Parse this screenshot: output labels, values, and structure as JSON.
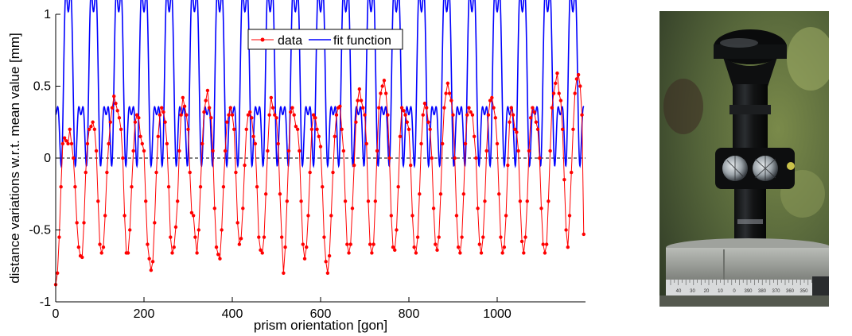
{
  "chart_data": {
    "type": "line",
    "xlabel": "prism orientation [gon]",
    "ylabel": "distance variations w.r.t. mean value [mm]",
    "xlim": [
      0,
      1200
    ],
    "ylim": [
      -1,
      1
    ],
    "xticks": [
      "0",
      "200",
      "400",
      "600",
      "800",
      "1000"
    ],
    "yticks": [
      "1",
      "0.5",
      "0",
      "-0.5",
      "-1"
    ],
    "zero_line": "dashed",
    "grid": false,
    "legend_position": "top-center",
    "fit_period_gon": 57.14,
    "series": [
      {
        "name": "data",
        "color": "#ff0000",
        "style": "line-with-dots",
        "points": [
          [
            0,
            -0.88
          ],
          [
            4,
            -0.8
          ],
          [
            8,
            -0.55
          ],
          [
            12,
            -0.2
          ],
          [
            16,
            0.1
          ],
          [
            20,
            0.14
          ],
          [
            24,
            0.12
          ],
          [
            28,
            0.1
          ],
          [
            32,
            0.2
          ],
          [
            36,
            0.1
          ],
          [
            40,
            0.0
          ],
          [
            44,
            -0.2
          ],
          [
            48,
            -0.45
          ],
          [
            52,
            -0.62
          ],
          [
            56,
            -0.68
          ],
          [
            60,
            -0.69
          ],
          [
            64,
            -0.45
          ],
          [
            68,
            -0.1
          ],
          [
            72,
            0.1
          ],
          [
            76,
            0.2
          ],
          [
            80,
            0.22
          ],
          [
            84,
            0.25
          ],
          [
            88,
            0.2
          ],
          [
            92,
            0.05
          ],
          [
            96,
            -0.3
          ],
          [
            100,
            -0.6
          ],
          [
            104,
            -0.66
          ],
          [
            108,
            -0.62
          ],
          [
            112,
            -0.4
          ],
          [
            116,
            -0.1
          ],
          [
            120,
            0.1
          ],
          [
            124,
            0.25
          ],
          [
            128,
            0.35
          ],
          [
            132,
            0.43
          ],
          [
            136,
            0.38
          ],
          [
            140,
            0.33
          ],
          [
            144,
            0.28
          ],
          [
            148,
            0.2
          ],
          [
            152,
            0.0
          ],
          [
            156,
            -0.4
          ],
          [
            160,
            -0.66
          ],
          [
            164,
            -0.66
          ],
          [
            168,
            -0.5
          ],
          [
            172,
            -0.2
          ],
          [
            176,
            0.05
          ],
          [
            180,
            0.25
          ],
          [
            184,
            0.3
          ],
          [
            188,
            0.28
          ],
          [
            192,
            0.15
          ],
          [
            196,
            0.1
          ],
          [
            200,
            0.05
          ],
          [
            204,
            -0.3
          ],
          [
            208,
            -0.6
          ],
          [
            212,
            -0.7
          ],
          [
            216,
            -0.78
          ],
          [
            220,
            -0.72
          ],
          [
            224,
            -0.45
          ],
          [
            228,
            -0.1
          ],
          [
            232,
            0.15
          ],
          [
            236,
            0.3
          ],
          [
            240,
            0.35
          ],
          [
            244,
            0.32
          ],
          [
            248,
            0.25
          ],
          [
            252,
            0.1
          ],
          [
            256,
            -0.2
          ],
          [
            260,
            -0.55
          ],
          [
            264,
            -0.66
          ],
          [
            268,
            -0.62
          ],
          [
            272,
            -0.48
          ],
          [
            276,
            -0.3
          ],
          [
            280,
            0.05
          ],
          [
            284,
            0.3
          ],
          [
            288,
            0.42
          ],
          [
            292,
            0.36
          ],
          [
            296,
            0.3
          ],
          [
            300,
            0.2
          ],
          [
            304,
            -0.1
          ],
          [
            308,
            -0.38
          ],
          [
            312,
            -0.4
          ],
          [
            316,
            -0.55
          ],
          [
            320,
            -0.66
          ],
          [
            324,
            -0.5
          ],
          [
            328,
            -0.2
          ],
          [
            332,
            0.1
          ],
          [
            336,
            0.32
          ],
          [
            340,
            0.4
          ],
          [
            344,
            0.47
          ],
          [
            348,
            0.35
          ],
          [
            352,
            0.28
          ],
          [
            356,
            0.05
          ],
          [
            360,
            -0.35
          ],
          [
            364,
            -0.62
          ],
          [
            368,
            -0.67
          ],
          [
            372,
            -0.7
          ],
          [
            376,
            -0.5
          ],
          [
            380,
            -0.2
          ],
          [
            384,
            0.05
          ],
          [
            388,
            0.25
          ],
          [
            392,
            0.3
          ],
          [
            396,
            0.35
          ],
          [
            400,
            0.3
          ],
          [
            404,
            0.2
          ],
          [
            408,
            -0.1
          ],
          [
            412,
            -0.45
          ],
          [
            416,
            -0.6
          ],
          [
            420,
            -0.56
          ],
          [
            424,
            -0.35
          ],
          [
            428,
            -0.05
          ],
          [
            432,
            0.2
          ],
          [
            436,
            0.3
          ],
          [
            440,
            0.32
          ],
          [
            444,
            0.28
          ],
          [
            448,
            0.15
          ],
          [
            452,
            0.1
          ],
          [
            456,
            -0.2
          ],
          [
            460,
            -0.55
          ],
          [
            464,
            -0.64
          ],
          [
            468,
            -0.66
          ],
          [
            472,
            -0.55
          ],
          [
            476,
            -0.25
          ],
          [
            480,
            0.05
          ],
          [
            484,
            0.3
          ],
          [
            488,
            0.42
          ],
          [
            492,
            0.35
          ],
          [
            496,
            0.3
          ],
          [
            500,
            0.28
          ],
          [
            504,
            0.1
          ],
          [
            508,
            -0.25
          ],
          [
            512,
            -0.55
          ],
          [
            516,
            -0.8
          ],
          [
            520,
            -0.62
          ],
          [
            524,
            -0.3
          ],
          [
            528,
            0.05
          ],
          [
            532,
            0.32
          ],
          [
            536,
            0.35
          ],
          [
            540,
            0.3
          ],
          [
            544,
            0.22
          ],
          [
            548,
            0.2
          ],
          [
            552,
            0.05
          ],
          [
            556,
            -0.3
          ],
          [
            560,
            -0.6
          ],
          [
            564,
            -0.7
          ],
          [
            568,
            -0.62
          ],
          [
            572,
            -0.4
          ],
          [
            576,
            -0.1
          ],
          [
            580,
            0.2
          ],
          [
            584,
            0.3
          ],
          [
            588,
            0.28
          ],
          [
            592,
            0.2
          ],
          [
            596,
            0.15
          ],
          [
            600,
            0.08
          ],
          [
            604,
            -0.2
          ],
          [
            608,
            -0.55
          ],
          [
            612,
            -0.72
          ],
          [
            616,
            -0.8
          ],
          [
            620,
            -0.68
          ],
          [
            624,
            -0.4
          ],
          [
            628,
            -0.1
          ],
          [
            632,
            0.15
          ],
          [
            636,
            0.3
          ],
          [
            640,
            0.35
          ],
          [
            644,
            0.36
          ],
          [
            648,
            0.2
          ],
          [
            652,
            0.05
          ],
          [
            656,
            -0.3
          ],
          [
            660,
            -0.6
          ],
          [
            664,
            -0.66
          ],
          [
            668,
            -0.6
          ],
          [
            672,
            -0.35
          ],
          [
            676,
            -0.05
          ],
          [
            680,
            0.25
          ],
          [
            684,
            0.4
          ],
          [
            688,
            0.48
          ],
          [
            692,
            0.4
          ],
          [
            696,
            0.35
          ],
          [
            700,
            0.3
          ],
          [
            704,
            0.1
          ],
          [
            708,
            -0.3
          ],
          [
            712,
            -0.6
          ],
          [
            716,
            -0.66
          ],
          [
            720,
            -0.6
          ],
          [
            724,
            -0.3
          ],
          [
            728,
            0.05
          ],
          [
            732,
            0.35
          ],
          [
            736,
            0.45
          ],
          [
            740,
            0.5
          ],
          [
            744,
            0.54
          ],
          [
            748,
            0.45
          ],
          [
            752,
            0.3
          ],
          [
            756,
            0.0
          ],
          [
            760,
            -0.4
          ],
          [
            764,
            -0.62
          ],
          [
            768,
            -0.64
          ],
          [
            772,
            -0.5
          ],
          [
            776,
            -0.2
          ],
          [
            780,
            0.15
          ],
          [
            784,
            0.35
          ],
          [
            788,
            0.33
          ],
          [
            792,
            0.3
          ],
          [
            796,
            0.25
          ],
          [
            800,
            0.2
          ],
          [
            804,
            -0.05
          ],
          [
            808,
            -0.4
          ],
          [
            812,
            -0.62
          ],
          [
            816,
            -0.66
          ],
          [
            820,
            -0.55
          ],
          [
            824,
            -0.25
          ],
          [
            828,
            0.1
          ],
          [
            832,
            0.3
          ],
          [
            836,
            0.38
          ],
          [
            840,
            0.35
          ],
          [
            844,
            0.25
          ],
          [
            848,
            0.2
          ],
          [
            852,
            0.0
          ],
          [
            856,
            -0.35
          ],
          [
            860,
            -0.6
          ],
          [
            864,
            -0.64
          ],
          [
            868,
            -0.55
          ],
          [
            872,
            -0.25
          ],
          [
            876,
            0.1
          ],
          [
            880,
            0.35
          ],
          [
            884,
            0.45
          ],
          [
            888,
            0.52
          ],
          [
            892,
            0.45
          ],
          [
            896,
            0.4
          ],
          [
            900,
            0.3
          ],
          [
            904,
            0.0
          ],
          [
            908,
            -0.4
          ],
          [
            912,
            -0.62
          ],
          [
            916,
            -0.66
          ],
          [
            920,
            -0.55
          ],
          [
            924,
            -0.25
          ],
          [
            928,
            0.1
          ],
          [
            932,
            0.3
          ],
          [
            936,
            0.35
          ],
          [
            940,
            0.32
          ],
          [
            944,
            0.3
          ],
          [
            948,
            0.15
          ],
          [
            952,
            0.0
          ],
          [
            956,
            -0.35
          ],
          [
            960,
            -0.6
          ],
          [
            964,
            -0.66
          ],
          [
            968,
            -0.55
          ],
          [
            972,
            -0.3
          ],
          [
            976,
            0.05
          ],
          [
            980,
            0.3
          ],
          [
            984,
            0.4
          ],
          [
            988,
            0.42
          ],
          [
            992,
            0.35
          ],
          [
            996,
            0.28
          ],
          [
            1000,
            0.1
          ],
          [
            1004,
            -0.25
          ],
          [
            1008,
            -0.55
          ],
          [
            1012,
            -0.66
          ],
          [
            1016,
            -0.62
          ],
          [
            1020,
            -0.4
          ],
          [
            1024,
            -0.05
          ],
          [
            1028,
            0.25
          ],
          [
            1032,
            0.35
          ],
          [
            1036,
            0.3
          ],
          [
            1040,
            0.2
          ],
          [
            1044,
            0.18
          ],
          [
            1048,
            0.05
          ],
          [
            1052,
            -0.3
          ],
          [
            1056,
            -0.58
          ],
          [
            1060,
            -0.66
          ],
          [
            1064,
            -0.55
          ],
          [
            1068,
            -0.3
          ],
          [
            1072,
            0.05
          ],
          [
            1076,
            0.28
          ],
          [
            1080,
            0.35
          ],
          [
            1084,
            0.32
          ],
          [
            1088,
            0.25
          ],
          [
            1092,
            0.2
          ],
          [
            1096,
            0.0
          ],
          [
            1100,
            -0.35
          ],
          [
            1104,
            -0.6
          ],
          [
            1108,
            -0.66
          ],
          [
            1112,
            -0.6
          ],
          [
            1116,
            -0.3
          ],
          [
            1120,
            0.05
          ],
          [
            1124,
            0.35
          ],
          [
            1128,
            0.45
          ],
          [
            1132,
            0.52
          ],
          [
            1136,
            0.59
          ],
          [
            1140,
            0.45
          ],
          [
            1144,
            0.4
          ],
          [
            1148,
            0.2
          ],
          [
            1152,
            -0.15
          ],
          [
            1156,
            -0.5
          ],
          [
            1160,
            -0.62
          ],
          [
            1164,
            -0.4
          ],
          [
            1168,
            -0.1
          ],
          [
            1172,
            0.2
          ],
          [
            1176,
            0.45
          ],
          [
            1180,
            0.55
          ],
          [
            1184,
            0.58
          ],
          [
            1188,
            0.5
          ],
          [
            1192,
            0.3
          ],
          [
            1196,
            -0.53
          ]
        ]
      },
      {
        "name": "fit function",
        "color": "#0000ff",
        "style": "line",
        "model": "y = 0.512 - 0.464*cos(2*pi*x/P) + 0.32*cos(4*pi*x/P) + 0.106*cos(6*pi*x/P) - 0.172*cos(8*pi*x/P)"
      }
    ]
  },
  "photo": {
    "alt": "360 degree surveying prism mounted on a tribrach",
    "dial_labels": [
      "40",
      "30",
      "20",
      "10",
      "0",
      "390",
      "380",
      "370",
      "360",
      "350",
      "340"
    ],
    "colors": {
      "background_green": "#5a6a3c",
      "prism_black": "#141618",
      "base_grey": "#9a9d98"
    }
  }
}
